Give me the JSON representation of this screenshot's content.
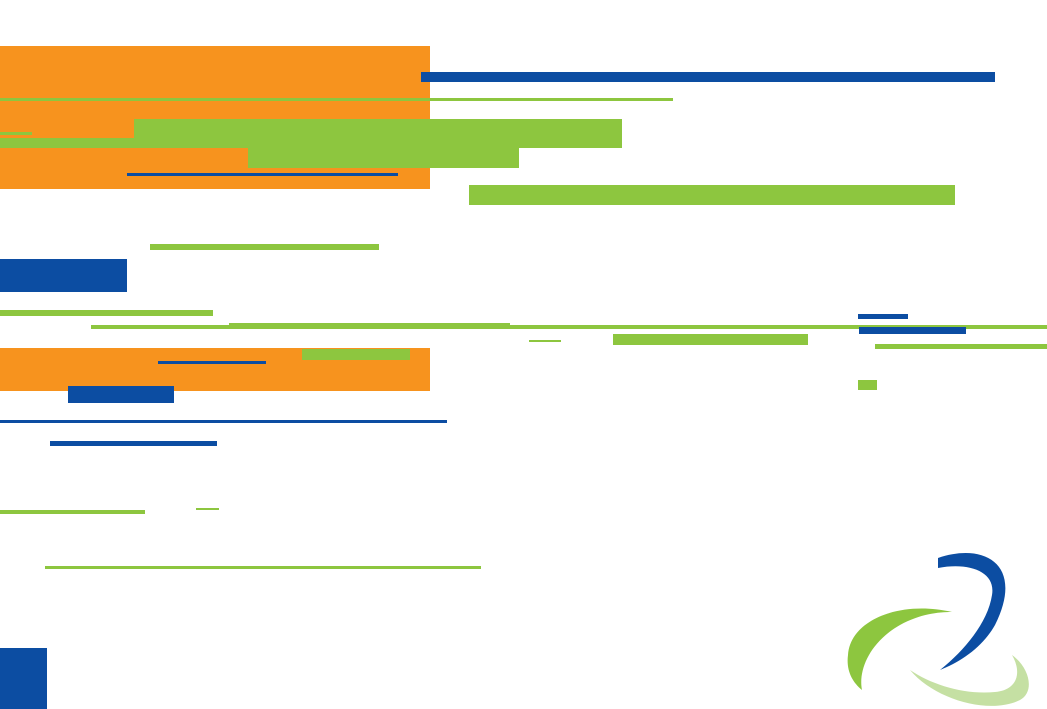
{
  "colors": {
    "orange": "#f7931e",
    "green": "#8dc63f",
    "light_green": "#c5e0a3",
    "blue": "#0c4da2",
    "background": "#ffffff"
  },
  "logo": {
    "icon": "swirl-logo-icon"
  }
}
